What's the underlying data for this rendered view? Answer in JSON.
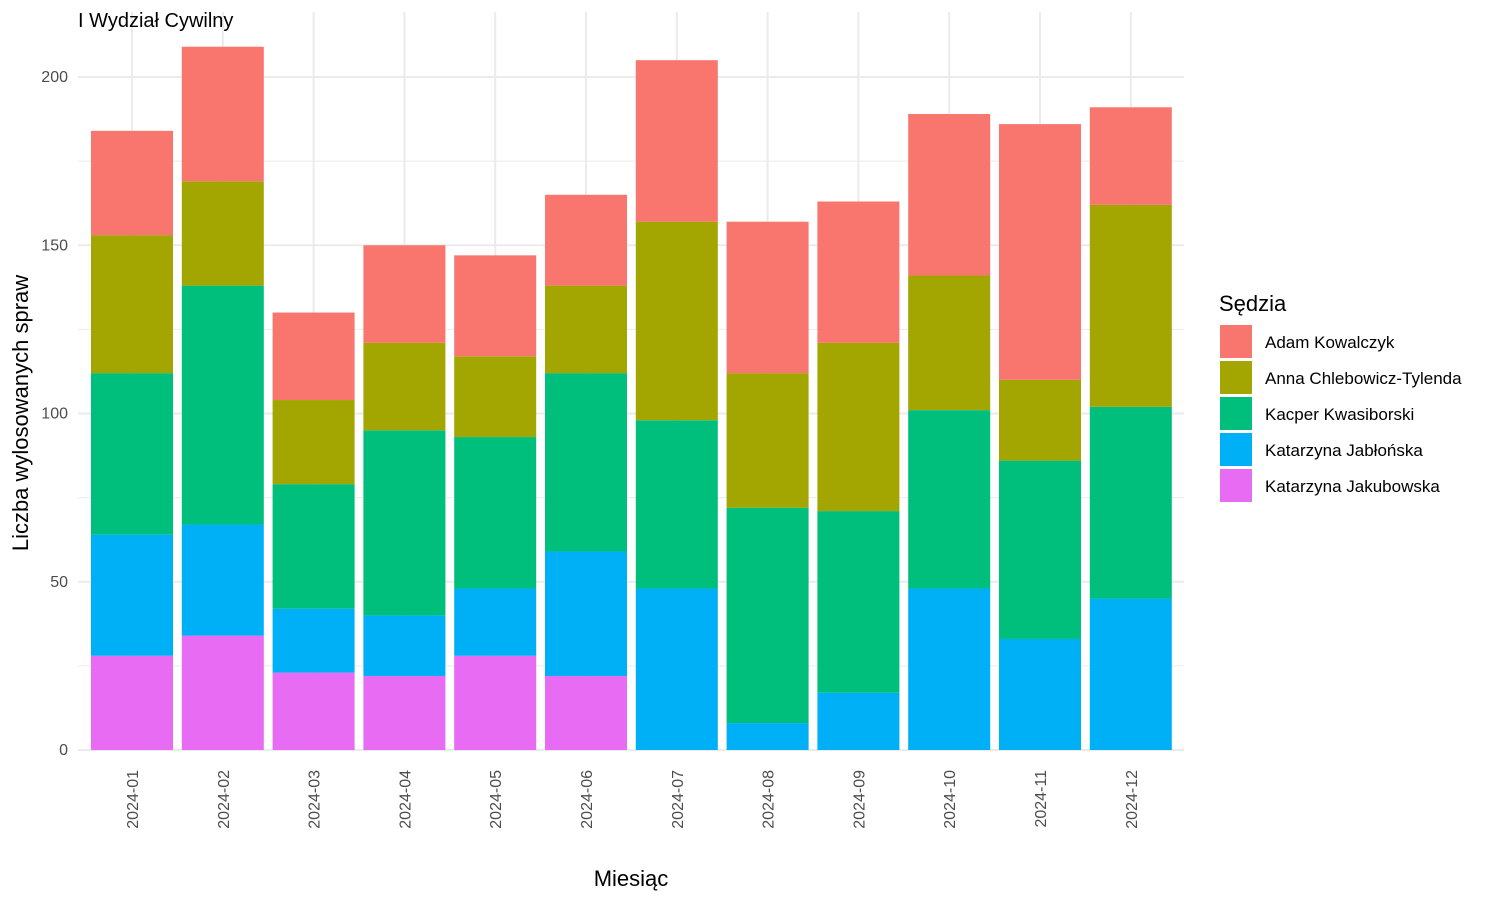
{
  "chart_data": {
    "type": "bar",
    "stacked": true,
    "title": "I Wydział Cywilny",
    "xlabel": "Miesiąc",
    "ylabel": "Liczba wylosowanych spraw",
    "ylim": [
      0,
      210
    ],
    "yticks": [
      0,
      50,
      100,
      150,
      200
    ],
    "grid": true,
    "legend_title": "Sędzia",
    "legend_position": "right",
    "categories": [
      "2024-01",
      "2024-02",
      "2024-03",
      "2024-04",
      "2024-05",
      "2024-06",
      "2024-07",
      "2024-08",
      "2024-09",
      "2024-10",
      "2024-11",
      "2024-12"
    ],
    "series": [
      {
        "name": "Katarzyna Jakubowska",
        "color": "#E76BF3",
        "values": [
          28,
          34,
          23,
          22,
          28,
          22,
          0,
          0,
          0,
          0,
          0,
          0
        ]
      },
      {
        "name": "Katarzyna Jabłońska",
        "color": "#00B0F6",
        "values": [
          36,
          33,
          19,
          18,
          20,
          37,
          48,
          8,
          17,
          48,
          33,
          45
        ]
      },
      {
        "name": "Kacper Kwasiborski",
        "color": "#00BF7D",
        "values": [
          48,
          71,
          37,
          55,
          45,
          53,
          50,
          64,
          54,
          53,
          53,
          57
        ]
      },
      {
        "name": "Anna Chlebowicz-Tylenda",
        "color": "#A3A500",
        "values": [
          41,
          31,
          25,
          26,
          24,
          26,
          59,
          40,
          50,
          40,
          24,
          60
        ]
      },
      {
        "name": "Adam Kowalczyk",
        "color": "#F8766D",
        "values": [
          31,
          40,
          26,
          29,
          30,
          27,
          48,
          45,
          42,
          48,
          76,
          29
        ]
      }
    ],
    "legend_order": [
      "Adam Kowalczyk",
      "Anna Chlebowicz-Tylenda",
      "Kacper Kwasiborski",
      "Katarzyna Jabłońska",
      "Katarzyna Jakubowska"
    ]
  }
}
